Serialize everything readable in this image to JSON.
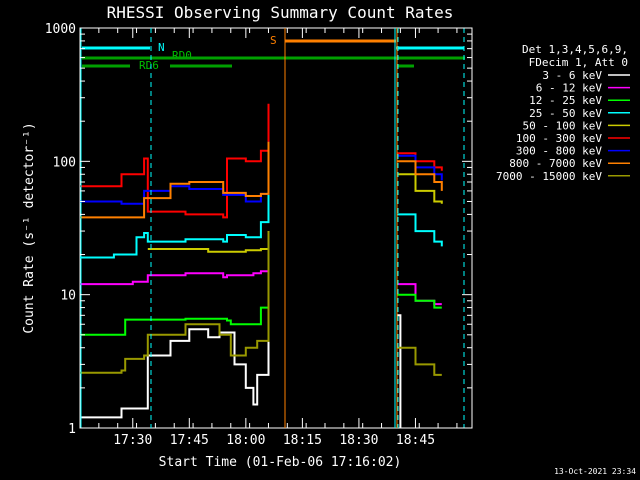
{
  "chart_data": {
    "type": "line",
    "title": "RHESSI Observing Summary Count Rates",
    "xlabel": "Start Time (01-Feb-06 17:16:02)",
    "ylabel": "Count Rate (s⁻¹ detector⁻¹)",
    "yscale": "log",
    "ylim": [
      1,
      1000
    ],
    "xlim": [
      "17:16",
      "19:00"
    ],
    "x_ticks": [
      "17:30",
      "17:45",
      "18:00",
      "18:15",
      "18:30",
      "18:45"
    ],
    "y_ticks": [
      "1",
      "10",
      "100",
      "1000"
    ],
    "grid": false,
    "legend_header": [
      "Det 1,3,4,5,6,9,",
      "FDecim 1, Att 0"
    ],
    "legend_position": "right",
    "footer": "13-Oct-2021 23:34",
    "flag_labels": {
      "N": "N",
      "S": "S",
      "RD0": "RD0",
      "RD6": "RD6"
    },
    "series": [
      {
        "name": "3 - 6 keV",
        "color": "#ffffff",
        "x": [
          "17:16",
          "17:27",
          "17:27",
          "17:33",
          "17:34",
          "17:40",
          "17:45",
          "17:50",
          "17:53",
          "17:57",
          "18:00",
          "18:02",
          "18:03",
          "18:06",
          "18:39",
          "18:40",
          "18:41"
        ],
        "y": [
          1.2,
          1.3,
          1.4,
          1.4,
          3.5,
          4.5,
          5.5,
          4.8,
          5.2,
          3,
          2,
          1.5,
          2.5,
          30,
          null,
          7,
          1
        ]
      },
      {
        "name": "6 - 12 keV",
        "color": "#ff00ff",
        "x": [
          "17:16",
          "17:30",
          "17:33",
          "17:34",
          "17:44",
          "17:54",
          "17:55",
          "18:02",
          "18:04",
          "18:06",
          "18:39",
          "18:40",
          "18:45",
          "18:50",
          "18:52"
        ],
        "y": [
          12,
          12.5,
          12.5,
          14,
          14.5,
          13.5,
          14,
          14.5,
          15,
          20,
          null,
          12,
          9,
          8.5,
          8.5
        ]
      },
      {
        "name": "12 - 25 keV",
        "color": "#00ff00",
        "x": [
          "17:16",
          "17:27",
          "17:28",
          "17:33",
          "17:34",
          "17:44",
          "17:55",
          "17:56",
          "18:01",
          "18:04",
          "18:06",
          "18:39",
          "18:40",
          "18:45",
          "18:50",
          "18:52"
        ],
        "y": [
          5,
          5,
          6.5,
          6.5,
          6.5,
          6.6,
          6.4,
          6,
          6,
          8,
          25,
          null,
          10,
          9,
          8,
          8
        ]
      },
      {
        "name": "25 - 50 keV",
        "color": "#00ffff",
        "x": [
          "17:16",
          "17:25",
          "17:31",
          "17:33",
          "17:34",
          "17:44",
          "17:54",
          "17:55",
          "18:00",
          "18:04",
          "18:06",
          "18:39",
          "18:40",
          "18:45",
          "18:50",
          "18:52"
        ],
        "y": [
          19,
          20,
          27,
          29,
          25,
          26,
          25,
          28,
          27,
          35,
          60,
          null,
          40,
          30,
          25,
          23
        ]
      },
      {
        "name": "50 - 100 keV",
        "color": "#cccc00",
        "x": [
          "17:16",
          "17:33",
          "17:34",
          "17:50",
          "17:54",
          "17:55",
          "18:00",
          "18:04",
          "18:06",
          "18:39",
          "18:40",
          "18:45",
          "18:50",
          "18:52"
        ],
        "y": [
          null,
          null,
          22,
          21,
          21,
          21,
          21.5,
          22,
          30,
          null,
          80,
          60,
          50,
          48
        ]
      },
      {
        "name": "100 - 300 keV",
        "color": "#ff0000",
        "x": [
          "17:16",
          "17:25",
          "17:27",
          "17:33",
          "17:34",
          "17:44",
          "17:54",
          "17:55",
          "18:00",
          "18:04",
          "18:06",
          "18:39",
          "18:40",
          "18:45",
          "18:50",
          "18:52"
        ],
        "y": [
          65,
          65,
          80,
          105,
          42,
          40,
          38,
          105,
          100,
          120,
          270,
          null,
          115,
          100,
          90,
          85
        ]
      },
      {
        "name": "300 - 800 keV",
        "color": "#0000ff",
        "x": [
          "17:16",
          "17:27",
          "17:33",
          "17:40",
          "17:45",
          "17:54",
          "18:00",
          "18:04",
          "18:06",
          "18:39",
          "18:40",
          "18:45",
          "18:50",
          "18:52"
        ],
        "y": [
          50,
          48,
          60,
          65,
          62,
          56,
          50,
          57,
          140,
          null,
          110,
          90,
          80,
          72
        ]
      },
      {
        "name": "800 - 7000 keV",
        "color": "#ff8000",
        "x": [
          "17:16",
          "17:27",
          "17:33",
          "17:40",
          "17:45",
          "17:54",
          "18:00",
          "18:04",
          "18:06",
          "18:39",
          "18:40",
          "18:45",
          "18:50",
          "18:52"
        ],
        "y": [
          38,
          38,
          53,
          68,
          70,
          58,
          55,
          57,
          140,
          null,
          100,
          80,
          70,
          60
        ]
      },
      {
        "name": "7000 - 15000 keV",
        "color": "#999900",
        "x": [
          "17:16",
          "17:27",
          "17:28",
          "17:33",
          "17:34",
          "17:44",
          "17:53",
          "17:56",
          "18:00",
          "18:03",
          "18:06",
          "18:39",
          "18:40",
          "18:45",
          "18:50",
          "18:52"
        ],
        "y": [
          2.6,
          2.7,
          3.3,
          3.5,
          5,
          6,
          5,
          3.5,
          4,
          4.5,
          30,
          null,
          4,
          3,
          2.5,
          2.5
        ]
      }
    ]
  }
}
